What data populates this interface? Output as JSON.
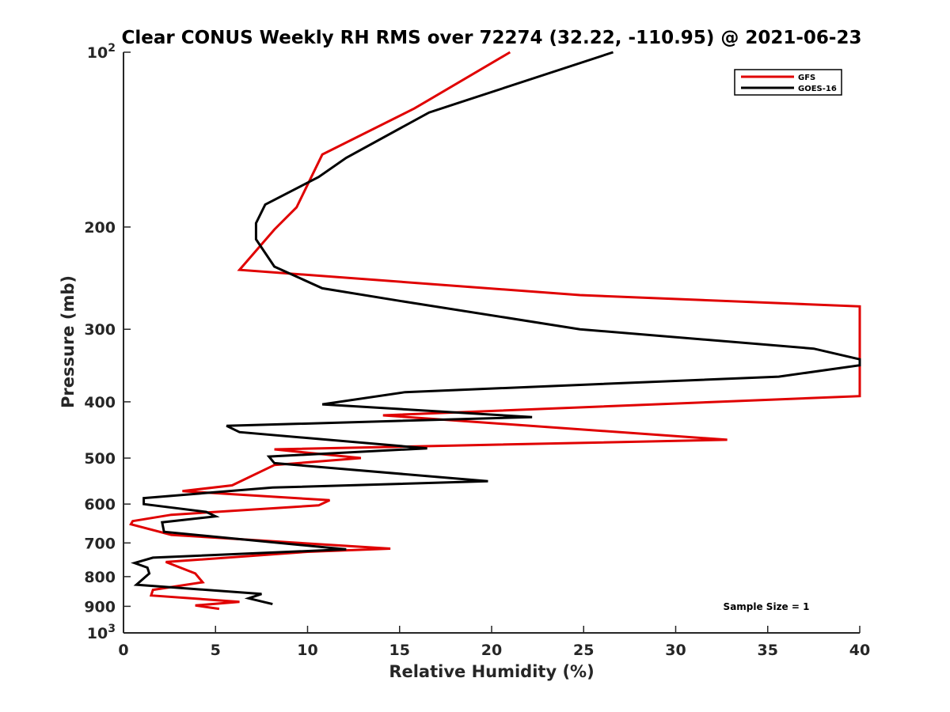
{
  "chart_data": {
    "type": "line",
    "title": "Clear CONUS Weekly RH RMS over 72274 (32.22, -110.95) @ 2021-06-23",
    "xlabel": "Relative Humidity (%)",
    "ylabel": "Pressure (mb)",
    "xlim": [
      0,
      40
    ],
    "ylim": [
      100,
      1000
    ],
    "y_scale": "log",
    "y_reversed": true,
    "x_ticks": [
      "0",
      "5",
      "10",
      "15",
      "20",
      "25",
      "30",
      "35",
      "40"
    ],
    "y_ticks": [
      {
        "value": 100,
        "label": "10",
        "sup": "2"
      },
      {
        "value": 200,
        "label": "200",
        "sup": ""
      },
      {
        "value": 300,
        "label": "300",
        "sup": ""
      },
      {
        "value": 400,
        "label": "400",
        "sup": ""
      },
      {
        "value": 500,
        "label": "500",
        "sup": ""
      },
      {
        "value": 600,
        "label": "600",
        "sup": ""
      },
      {
        "value": 700,
        "label": "700",
        "sup": ""
      },
      {
        "value": 800,
        "label": "800",
        "sup": ""
      },
      {
        "value": 900,
        "label": "900",
        "sup": ""
      },
      {
        "value": 1000,
        "label": "10",
        "sup": "3"
      }
    ],
    "legend_position": "top-right",
    "grid": false,
    "series": [
      {
        "name": "GFS",
        "color": "#e00000",
        "points": [
          [
            21.0,
            100
          ],
          [
            15.8,
            125
          ],
          [
            10.8,
            150
          ],
          [
            9.4,
            185
          ],
          [
            8.2,
            202
          ],
          [
            6.3,
            237
          ],
          [
            24.8,
            262
          ],
          [
            40.0,
            274
          ],
          [
            40.0,
            391
          ],
          [
            14.1,
            422
          ],
          [
            32.8,
            465
          ],
          [
            8.2,
            483
          ],
          [
            12.9,
            500
          ],
          [
            8.2,
            514
          ],
          [
            5.9,
            557
          ],
          [
            3.2,
            570
          ],
          [
            11.2,
            591
          ],
          [
            10.6,
            603
          ],
          [
            2.6,
            626
          ],
          [
            0.5,
            642
          ],
          [
            0.4,
            650
          ],
          [
            2.6,
            678
          ],
          [
            14.5,
            716
          ],
          [
            10.0,
            725
          ],
          [
            2.3,
            755
          ],
          [
            3.9,
            790
          ],
          [
            4.3,
            818
          ],
          [
            1.6,
            843
          ],
          [
            1.5,
            862
          ],
          [
            6.3,
            884
          ],
          [
            3.9,
            897
          ],
          [
            5.2,
            909
          ]
        ]
      },
      {
        "name": "GOES-16",
        "color": "#000000",
        "points": [
          [
            26.6,
            100
          ],
          [
            16.6,
            127
          ],
          [
            12.1,
            152
          ],
          [
            10.6,
            164
          ],
          [
            7.7,
            183
          ],
          [
            7.2,
            197
          ],
          [
            7.2,
            210
          ],
          [
            8.2,
            234
          ],
          [
            10.8,
            255
          ],
          [
            15.0,
            268
          ],
          [
            24.8,
            300
          ],
          [
            37.5,
            324
          ],
          [
            40.0,
            338
          ],
          [
            40.0,
            346
          ],
          [
            35.6,
            362
          ],
          [
            15.3,
            385
          ],
          [
            10.8,
            404
          ],
          [
            22.2,
            425
          ],
          [
            5.6,
            440
          ],
          [
            6.3,
            451
          ],
          [
            16.5,
            481
          ],
          [
            7.9,
            497
          ],
          [
            8.2,
            510
          ],
          [
            19.8,
            548
          ],
          [
            8.1,
            562
          ],
          [
            1.1,
            586
          ],
          [
            1.1,
            600
          ],
          [
            4.5,
            619
          ],
          [
            5.0,
            630
          ],
          [
            2.1,
            645
          ],
          [
            2.2,
            670
          ],
          [
            12.1,
            718
          ],
          [
            1.6,
            742
          ],
          [
            0.6,
            758
          ],
          [
            1.3,
            772
          ],
          [
            1.4,
            790
          ],
          [
            0.7,
            826
          ],
          [
            7.5,
            857
          ],
          [
            6.8,
            872
          ],
          [
            8.1,
            892
          ]
        ]
      }
    ],
    "annotation": "Sample Size = 1"
  }
}
